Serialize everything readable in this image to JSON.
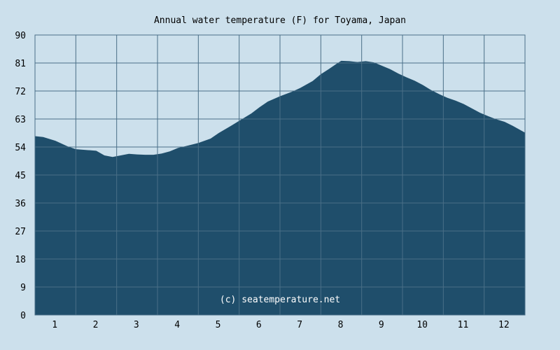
{
  "chart_data": {
    "type": "area",
    "title": "Annual water temperature (F) for Toyama, Japan",
    "xlabel": "",
    "ylabel": "",
    "ylim": [
      0,
      90
    ],
    "xlim": [
      0.5,
      12.5
    ],
    "y_ticks": [
      "0",
      "9",
      "18",
      "27",
      "36",
      "45",
      "54",
      "63",
      "72",
      "81",
      "90"
    ],
    "x_ticks": [
      "1",
      "2",
      "3",
      "4",
      "5",
      "6",
      "7",
      "8",
      "9",
      "10",
      "11",
      "12"
    ],
    "grid": true,
    "x": [
      0.5,
      0.7,
      1.0,
      1.3,
      1.5,
      1.8,
      2.0,
      2.2,
      2.4,
      2.6,
      2.8,
      3.0,
      3.2,
      3.4,
      3.6,
      3.8,
      4.0,
      4.2,
      4.5,
      4.8,
      5.0,
      5.3,
      5.5,
      5.8,
      6.0,
      6.2,
      6.5,
      6.8,
      7.0,
      7.3,
      7.5,
      7.7,
      7.9,
      8.0,
      8.2,
      8.4,
      8.6,
      8.8,
      9.0,
      9.2,
      9.4,
      9.6,
      9.8,
      10.0,
      10.2,
      10.4,
      10.6,
      10.8,
      11.0,
      11.2,
      11.4,
      11.6,
      11.8,
      12.0,
      12.2,
      12.5
    ],
    "values": [
      57.5,
      57.2,
      56.0,
      54.2,
      53.3,
      53.0,
      52.8,
      51.3,
      50.8,
      51.3,
      51.8,
      51.6,
      51.5,
      51.5,
      51.9,
      52.6,
      53.7,
      54.3,
      55.3,
      56.7,
      58.5,
      60.8,
      62.4,
      64.8,
      66.8,
      68.6,
      70.3,
      71.8,
      73.0,
      75.2,
      77.4,
      79.1,
      80.9,
      81.7,
      81.6,
      81.3,
      81.6,
      81.2,
      80.1,
      79.0,
      77.6,
      76.4,
      75.3,
      73.9,
      72.3,
      71.0,
      69.8,
      68.9,
      67.8,
      66.4,
      65.0,
      63.9,
      62.9,
      62.1,
      60.8,
      58.6
    ],
    "colors": {
      "background": "#cce0ec",
      "area_fill": "#1f4e6b",
      "grid": "#4a6f87",
      "watermark": "#ffffff"
    }
  },
  "watermark": "(c) seatemperature.net"
}
